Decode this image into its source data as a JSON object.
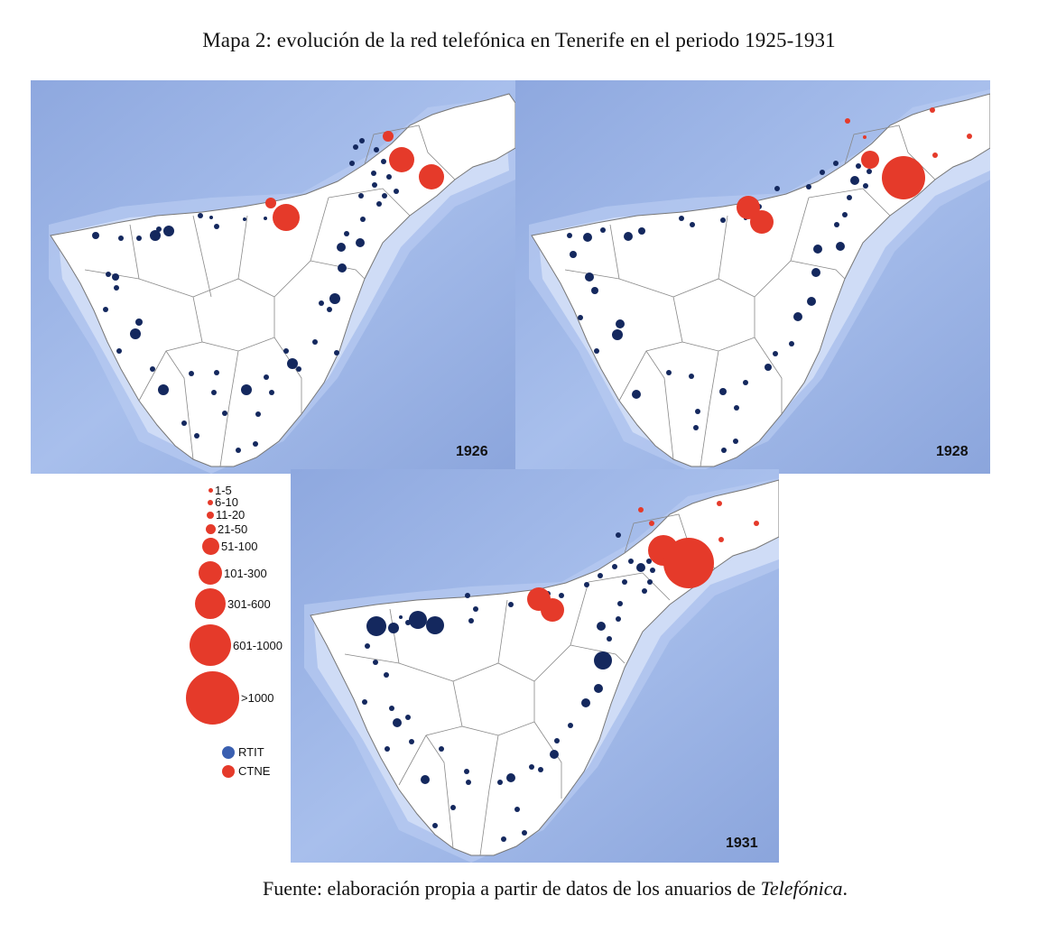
{
  "title": "Mapa 2: evolución de la red telefónica en Tenerife en el periodo 1925-1931",
  "maps": [
    {
      "year": "1926"
    },
    {
      "year": "1928"
    },
    {
      "year": "1931"
    }
  ],
  "legend": {
    "size_classes": [
      "1-5",
      "6-10",
      "11-20",
      "21-50",
      "51-100",
      "101-300",
      "301-600",
      "601-1000",
      ">1000"
    ],
    "networks": [
      {
        "label": "RTIT",
        "color": "#3a5fb0"
      },
      {
        "label": "CTNE",
        "color": "#e53a2a"
      }
    ]
  },
  "source": {
    "prefix": "Fuente: elaboración propia a partir de datos de los anuarios de ",
    "italic": "Telefónica",
    "suffix": "."
  },
  "colors": {
    "rtit_dot": "#14285e",
    "ctne_dot": "#e53a2a",
    "sea": "#9db4e6",
    "land": "#ffffff"
  }
}
